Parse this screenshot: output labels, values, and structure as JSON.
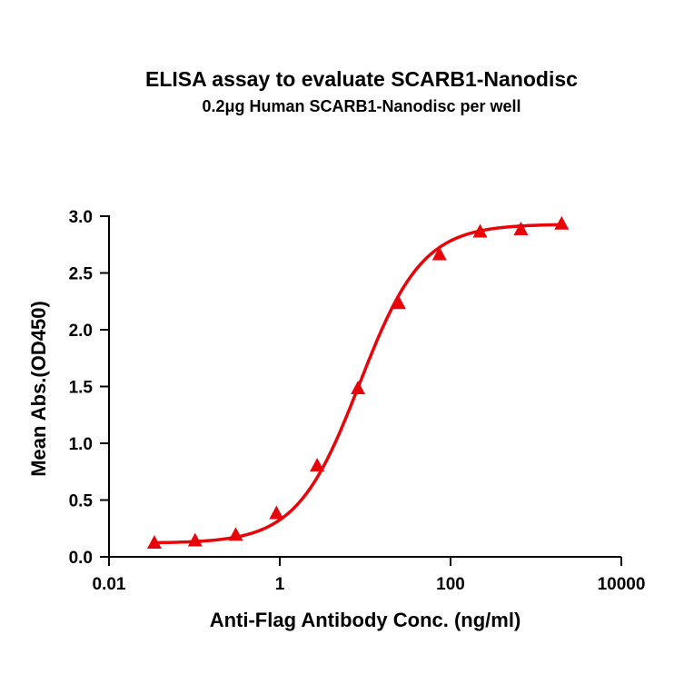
{
  "chart_data": {
    "type": "line",
    "title": "ELISA assay to evaluate SCARB1-Nanodisc",
    "subtitle": "0.2μg Human SCARB1-Nanodisc per well",
    "xlabel": "Anti-Flag Antibody Conc. (ng/ml)",
    "ylabel": "Mean Abs.(OD450)",
    "xscale": "log",
    "xlim": [
      0.01,
      10000
    ],
    "ylim": [
      0,
      3.0
    ],
    "xticks": [
      "0.01",
      "1",
      "100",
      "10000"
    ],
    "yticks": [
      "0.0",
      "0.5",
      "1.0",
      "1.5",
      "2.0",
      "2.5",
      "3.0"
    ],
    "grid": false,
    "legend": "none",
    "series": [
      {
        "marker": "triangle",
        "color": "#e8050a",
        "fit": "sigmoidal curve",
        "x": [
          0.034,
          0.102,
          0.305,
          0.914,
          2.74,
          8.23,
          24.7,
          74.1,
          222,
          667,
          2000
        ],
        "y": [
          0.12,
          0.14,
          0.19,
          0.38,
          0.8,
          1.48,
          2.23,
          2.66,
          2.86,
          2.88,
          2.93
        ]
      }
    ]
  }
}
